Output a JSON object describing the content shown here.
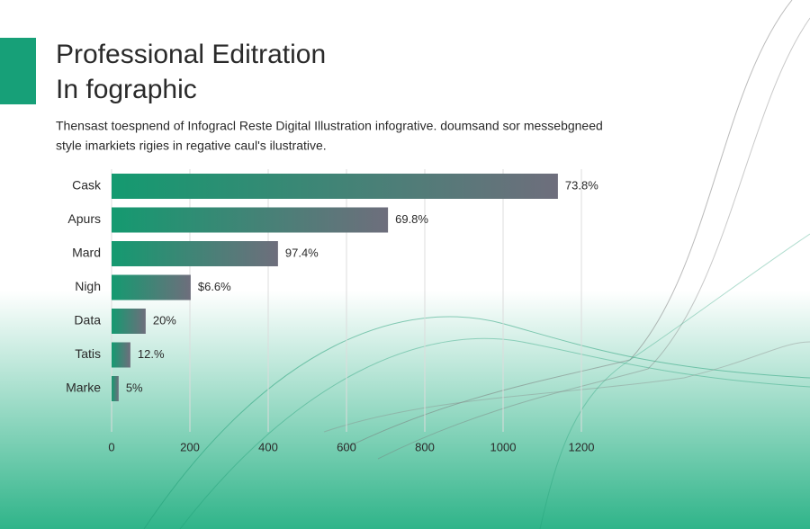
{
  "chart_data": {
    "type": "bar",
    "orientation": "horizontal",
    "title": [
      "Professional Editration",
      "In fographic"
    ],
    "subtitle": [
      "Thensast toespnend of Infogracl Reste Digital Illustration infogrative. doumsand sor messebgneed",
      "style imarkiets rigies in regative caul's ilustrative."
    ],
    "categories": [
      "Cask",
      "Apurs",
      "Mard",
      "Nigh",
      "Data",
      "Tatis",
      "Marke"
    ],
    "values": [
      1140,
      706,
      425,
      202,
      87,
      48,
      18
    ],
    "labels": [
      "73.8%",
      "69.8%",
      "97.4%",
      "$6.6%",
      "20%",
      "12.%",
      "5%"
    ],
    "xlim": [
      0,
      1200
    ],
    "xticks": [
      0,
      200,
      400,
      600,
      800,
      1000,
      1200
    ],
    "grid": true,
    "gradient": [
      "#149a70",
      "#6e6e7c"
    ]
  }
}
